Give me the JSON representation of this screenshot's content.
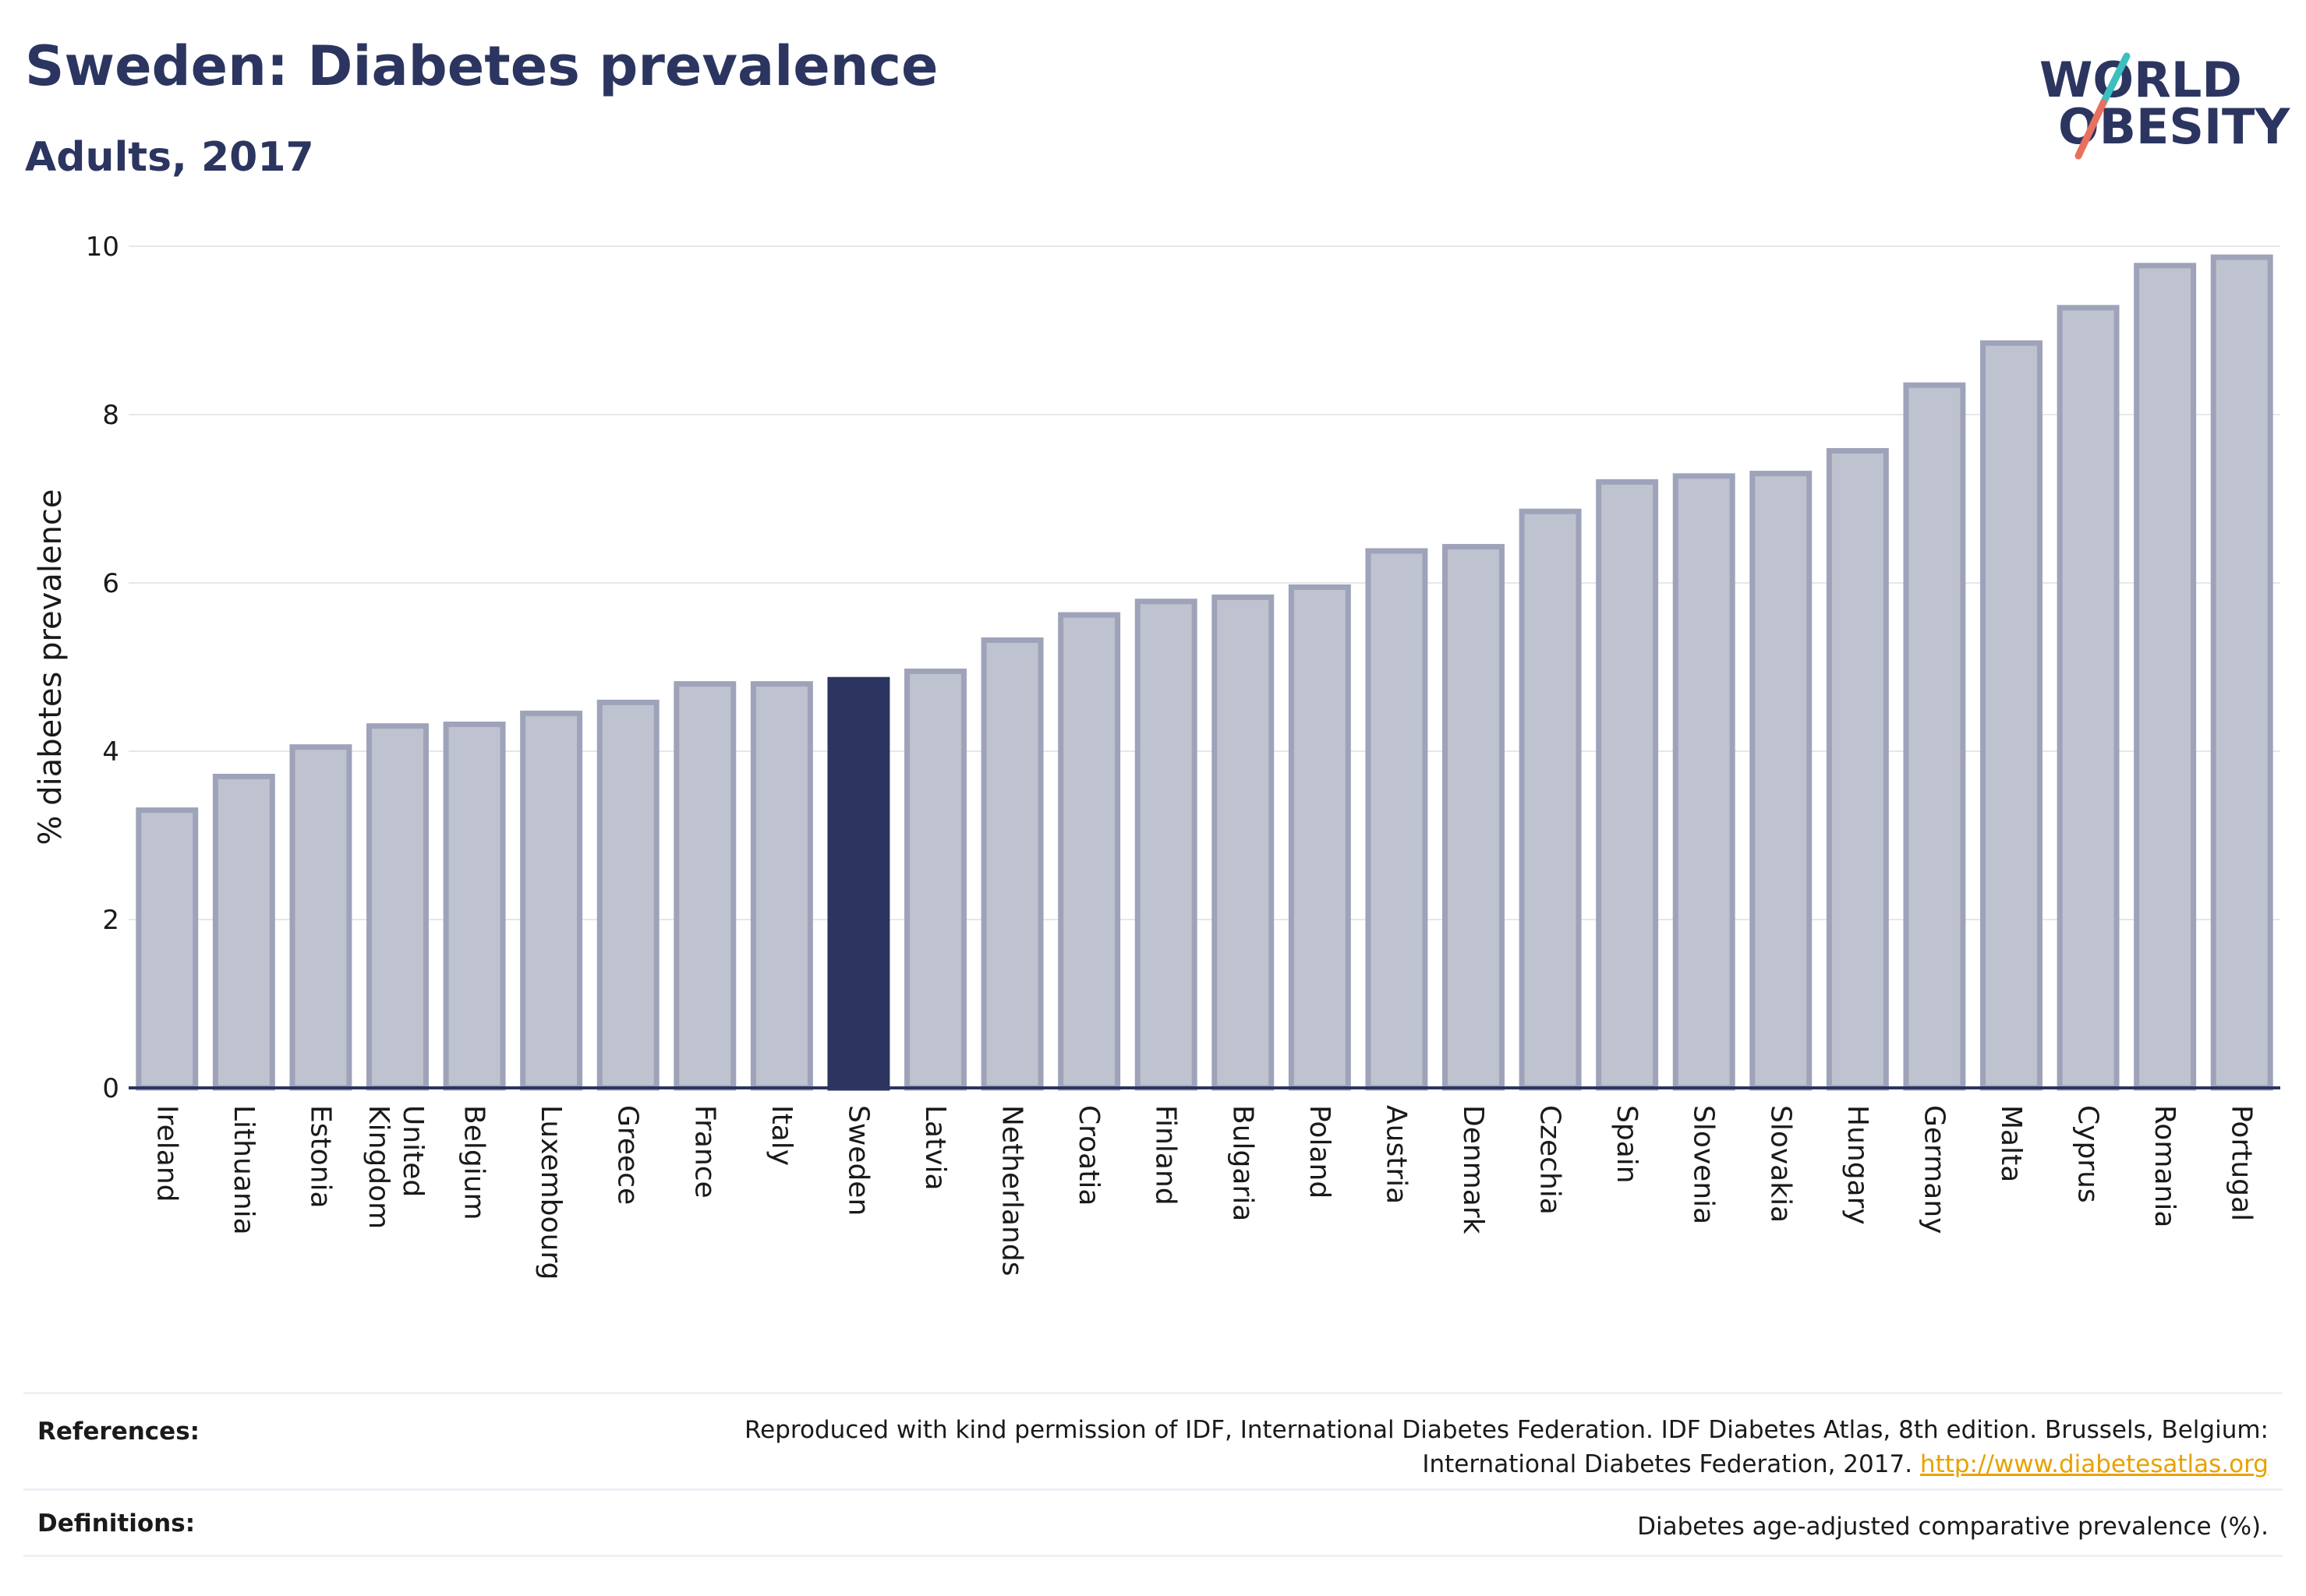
{
  "header": {
    "title": "Sweden: Diabetes prevalence",
    "subtitle": "Adults, 2017"
  },
  "logo": {
    "line1": "WORLD",
    "line2": "OBESITY"
  },
  "colors": {
    "highlight": "#2b3560",
    "bar_fill": "#bfc2cf",
    "bar_stroke": "#9ea3ba",
    "axis": "#2b3560",
    "grid": "#e6e7ec",
    "logo_teal": "#3bbfbf",
    "logo_coral": "#e8705e"
  },
  "chart_data": {
    "type": "bar",
    "ylabel": "% diabetes prevalence",
    "xlabel": "",
    "ylim": [
      0,
      10
    ],
    "yticks": [
      0,
      2,
      4,
      6,
      8,
      10
    ],
    "grid": true,
    "highlight": "Sweden",
    "categories": [
      "Ireland",
      "Lithuania",
      "Estonia",
      "United Kingdom",
      "Belgium",
      "Luxembourg",
      "Greece",
      "France",
      "Italy",
      "Sweden",
      "Latvia",
      "Netherlands",
      "Croatia",
      "Finland",
      "Bulgaria",
      "Poland",
      "Austria",
      "Denmark",
      "Czechia",
      "Spain",
      "Slovenia",
      "Slovakia",
      "Hungary",
      "Germany",
      "Malta",
      "Cyprus",
      "Romania",
      "Portugal"
    ],
    "values": [
      3.3,
      3.7,
      4.05,
      4.3,
      4.32,
      4.45,
      4.58,
      4.8,
      4.8,
      4.85,
      4.95,
      5.32,
      5.62,
      5.78,
      5.83,
      5.95,
      6.38,
      6.43,
      6.85,
      7.2,
      7.27,
      7.3,
      7.57,
      8.35,
      8.85,
      9.27,
      9.77,
      9.87
    ]
  },
  "footer": {
    "references_label": "References:",
    "references_line1": "Reproduced with kind permission of IDF, International Diabetes Federation. IDF Diabetes Atlas, 8th edition. Brussels, Belgium:",
    "references_line2": "International Diabetes Federation, 2017.",
    "references_link": "http://www.diabetesatlas.org",
    "definitions_label": "Definitions:",
    "definitions_text": "Diabetes age-adjusted comparative prevalence (%)."
  }
}
